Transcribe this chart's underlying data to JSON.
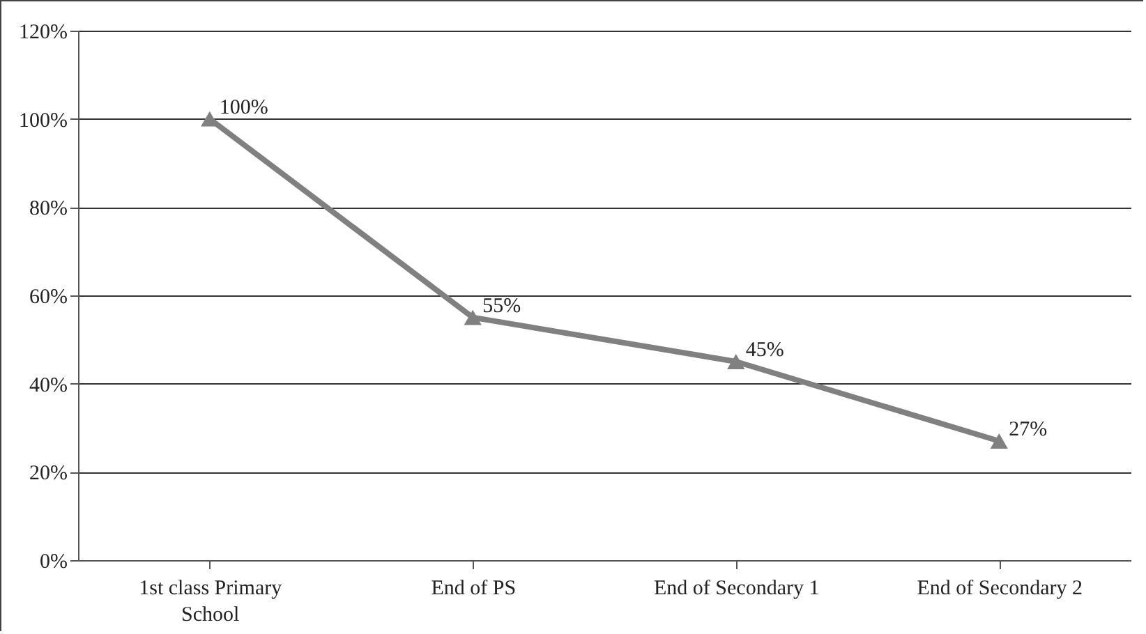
{
  "chart_data": {
    "type": "line",
    "categories": [
      "1st class Primary School",
      "End of PS",
      "End of Secondary 1",
      "End of Secondary 2"
    ],
    "values": [
      100,
      55,
      45,
      27
    ],
    "value_labels": [
      "100%",
      "55%",
      "45%",
      "27%"
    ],
    "color": "#808080",
    "ylim": [
      0,
      120
    ],
    "yticks": [
      {
        "value": 0,
        "label": "0%"
      },
      {
        "value": 20,
        "label": "20%"
      },
      {
        "value": 40,
        "label": "40%"
      },
      {
        "value": 60,
        "label": "60%"
      },
      {
        "value": 80,
        "label": "80%"
      },
      {
        "value": 100,
        "label": "100%"
      },
      {
        "value": 120,
        "label": "120%"
      }
    ],
    "grid": "y",
    "marker": "triangle",
    "line_style": "solid"
  }
}
